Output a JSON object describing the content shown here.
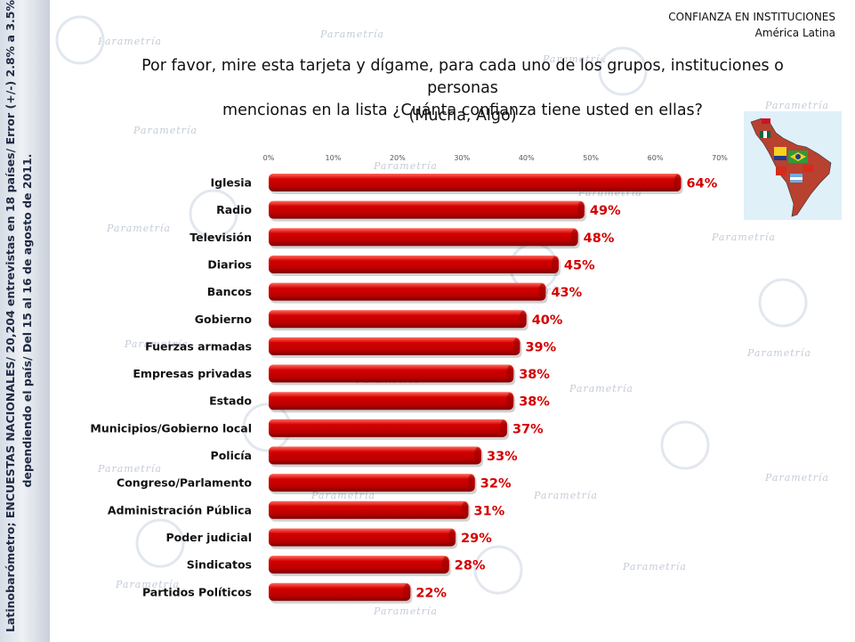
{
  "header": {
    "line1": "CONFIANZA EN INSTITUCIONES",
    "line2": "América Latina"
  },
  "question": {
    "line1": "Por favor, mire esta tarjeta y dígame, para cada uno de los grupos, instituciones o personas",
    "line2": "mencionas en la lista ¿Cuánta confianza tiene usted en ellas?",
    "subtitle": "(Mucha, Algo)"
  },
  "side_note": {
    "line1": "Latinobarómetro; ENCUESTAS NACIONALES/ 20,204 entrevistas en 18 países/ Error (+/-) 2.8% a 3.5%",
    "line2": "dependiendo el país/ Del 15 al 16 de agosto de 2011."
  },
  "watermark_text": "Parametría",
  "colors": {
    "bar": "#d40000",
    "bar_highlight": "#ff6a5e",
    "bar_shadow": "#7a0000",
    "value_label": "#d40000",
    "strip": "#c9d0da"
  },
  "chart_data": {
    "type": "bar",
    "orientation": "horizontal",
    "categories": [
      "Iglesia",
      "Radio",
      "Televisión",
      "Diarios",
      "Bancos",
      "Gobierno",
      "Fuerzas armadas",
      "Empresas privadas",
      "Estado",
      "Municipios/Gobierno local",
      "Policía",
      "Congreso/Parlamento",
      "Administración Pública",
      "Poder judicial",
      "Sindicatos",
      "Partidos Políticos"
    ],
    "values": [
      64,
      49,
      48,
      45,
      43,
      40,
      39,
      38,
      38,
      37,
      33,
      32,
      31,
      29,
      28,
      22
    ],
    "value_labels": [
      "64%",
      "49%",
      "48%",
      "45%",
      "43%",
      "40%",
      "39%",
      "38%",
      "38%",
      "37%",
      "33%",
      "32%",
      "31%",
      "29%",
      "28%",
      "22%"
    ],
    "xlim": [
      0,
      70
    ],
    "x_ticks": [
      0,
      10,
      20,
      30,
      40,
      50,
      60,
      70
    ],
    "x_tick_labels": [
      "0%",
      "10%",
      "20%",
      "30%",
      "40%",
      "50%",
      "60%",
      "70%"
    ],
    "grid": false,
    "legend": "none"
  }
}
